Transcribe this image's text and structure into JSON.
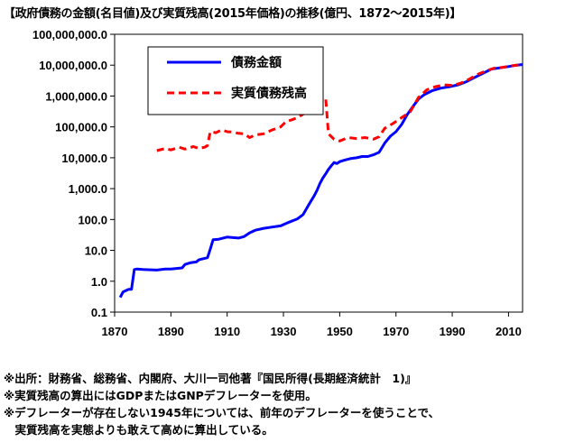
{
  "title": "【政府債務の金額(名目値)及び実質残高(2015年価格)の推移(億円、1872〜2015年)】",
  "notes": [
    "※出所：財務省、総務省、内閣府、大川一司他著『国民所得(長期経済統計　1)』",
    "※実質残高の算出にはGDPまたはGNPデフレーターを使用。",
    "※デフレーターが存在しない1945年については、前年のデフレーターを使うことで、",
    "　実質残高を実態よりも敢えて高めに算出している。"
  ],
  "chart_data": {
    "type": "line",
    "title": "",
    "xlabel": "",
    "ylabel": "",
    "y_scale": "log",
    "xlim": [
      1870,
      2015
    ],
    "ylim": [
      0.1,
      100000000
    ],
    "x_ticks": [
      1870,
      1890,
      1910,
      1930,
      1950,
      1970,
      1990,
      2010
    ],
    "y_ticks": [
      0.1,
      1,
      10,
      100,
      1000,
      10000,
      100000,
      1000000,
      10000000,
      100000000
    ],
    "y_tick_labels": [
      "0.1",
      "1.0",
      "10.0",
      "100.0",
      "1,000.0",
      "10,000.0",
      "100,000.0",
      "1,000,000.0",
      "10,000,000.0",
      "100,000,000.0"
    ],
    "grid": false,
    "legend_position": "top-left",
    "series": [
      {
        "name": "債務金額",
        "color": "#0000ff",
        "style": "solid",
        "points": [
          [
            1872,
            0.3
          ],
          [
            1873,
            0.45
          ],
          [
            1874,
            0.5
          ],
          [
            1875,
            0.55
          ],
          [
            1876,
            0.55
          ],
          [
            1877,
            2.4
          ],
          [
            1878,
            2.5
          ],
          [
            1880,
            2.4
          ],
          [
            1885,
            2.3
          ],
          [
            1888,
            2.5
          ],
          [
            1890,
            2.5
          ],
          [
            1892,
            2.6
          ],
          [
            1894,
            2.7
          ],
          [
            1895,
            3.5
          ],
          [
            1897,
            4.0
          ],
          [
            1899,
            4.2
          ],
          [
            1900,
            5.0
          ],
          [
            1902,
            5.5
          ],
          [
            1903,
            5.8
          ],
          [
            1904,
            11
          ],
          [
            1905,
            22
          ],
          [
            1907,
            23
          ],
          [
            1910,
            27
          ],
          [
            1912,
            26
          ],
          [
            1914,
            25
          ],
          [
            1916,
            28
          ],
          [
            1918,
            37
          ],
          [
            1920,
            45
          ],
          [
            1923,
            52
          ],
          [
            1926,
            57
          ],
          [
            1929,
            62
          ],
          [
            1932,
            82
          ],
          [
            1935,
            105
          ],
          [
            1937,
            145
          ],
          [
            1939,
            300
          ],
          [
            1941,
            600
          ],
          [
            1942,
            900
          ],
          [
            1943,
            1500
          ],
          [
            1944,
            2200
          ],
          [
            1945,
            3000
          ],
          [
            1946,
            4200
          ],
          [
            1947,
            5500
          ],
          [
            1948,
            7000
          ],
          [
            1949,
            6500
          ],
          [
            1950,
            7500
          ],
          [
            1952,
            8500
          ],
          [
            1954,
            9500
          ],
          [
            1956,
            10000
          ],
          [
            1958,
            11000
          ],
          [
            1960,
            11000
          ],
          [
            1962,
            12500
          ],
          [
            1964,
            15000
          ],
          [
            1966,
            30000
          ],
          [
            1968,
            50000
          ],
          [
            1970,
            70000
          ],
          [
            1972,
            120000
          ],
          [
            1974,
            250000
          ],
          [
            1976,
            450000
          ],
          [
            1978,
            800000
          ],
          [
            1980,
            1100000
          ],
          [
            1983,
            1500000
          ],
          [
            1986,
            1800000
          ],
          [
            1989,
            2000000
          ],
          [
            1992,
            2300000
          ],
          [
            1995,
            2900000
          ],
          [
            1998,
            4000000
          ],
          [
            2001,
            5500000
          ],
          [
            2004,
            7500000
          ],
          [
            2007,
            8200000
          ],
          [
            2010,
            9000000
          ],
          [
            2013,
            10000000
          ],
          [
            2015,
            10500000
          ]
        ]
      },
      {
        "name": "実質債務残高",
        "color": "#ff0000",
        "style": "dashed",
        "points": [
          [
            1885,
            17000
          ],
          [
            1888,
            20000
          ],
          [
            1890,
            18000
          ],
          [
            1893,
            22000
          ],
          [
            1895,
            19000
          ],
          [
            1898,
            23000
          ],
          [
            1900,
            20000
          ],
          [
            1902,
            22000
          ],
          [
            1903,
            25000
          ],
          [
            1904,
            70000
          ],
          [
            1906,
            65000
          ],
          [
            1908,
            80000
          ],
          [
            1910,
            70000
          ],
          [
            1912,
            68000
          ],
          [
            1914,
            62000
          ],
          [
            1916,
            60000
          ],
          [
            1918,
            45000
          ],
          [
            1920,
            55000
          ],
          [
            1923,
            60000
          ],
          [
            1926,
            80000
          ],
          [
            1929,
            100000
          ],
          [
            1931,
            150000
          ],
          [
            1933,
            170000
          ],
          [
            1935,
            200000
          ],
          [
            1937,
            260000
          ],
          [
            1940,
            320000
          ],
          [
            1942,
            500000
          ],
          [
            1944,
            850000
          ],
          [
            1945,
            900000
          ],
          [
            1946,
            60000
          ],
          [
            1948,
            40000
          ],
          [
            1950,
            35000
          ],
          [
            1953,
            45000
          ],
          [
            1956,
            42000
          ],
          [
            1959,
            45000
          ],
          [
            1962,
            40000
          ],
          [
            1964,
            48000
          ],
          [
            1966,
            90000
          ],
          [
            1969,
            130000
          ],
          [
            1972,
            200000
          ],
          [
            1975,
            300000
          ],
          [
            1978,
            900000
          ],
          [
            1981,
            1600000
          ],
          [
            1984,
            2000000
          ],
          [
            1987,
            2300000
          ],
          [
            1990,
            2200000
          ],
          [
            1993,
            2600000
          ],
          [
            1996,
            3500000
          ],
          [
            1999,
            5000000
          ],
          [
            2002,
            6500000
          ],
          [
            2005,
            8000000
          ],
          [
            2008,
            8500000
          ],
          [
            2011,
            9500000
          ],
          [
            2015,
            10500000
          ]
        ]
      }
    ]
  }
}
